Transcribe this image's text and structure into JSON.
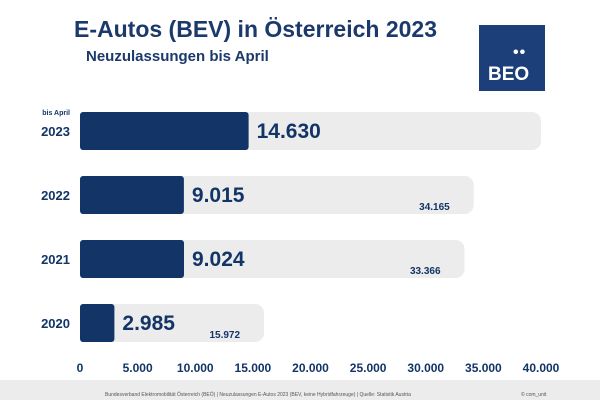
{
  "header": {
    "title": "E-Autos (BEV) in Österreich 2023",
    "subtitle": "Neuzulassungen bis April"
  },
  "logo": {
    "dots": "••",
    "text": "BEO"
  },
  "footer": {
    "source": "Bundesverband Elektromobilität Österreich (BEÖ) | Neuzulassungen E-Autos 2023 (BEV, keine Hybridfahrzeuge) | Quelle: Statistik Austria",
    "credit": "© com_unit"
  },
  "colors": {
    "accent": "#123466",
    "background_bar": "#ececec",
    "title": "#1b3a6b"
  },
  "chart_data": {
    "type": "bar",
    "orientation": "horizontal",
    "categories": [
      "2023",
      "2022",
      "2021",
      "2020"
    ],
    "category_notes": [
      "bis April",
      "",
      "",
      ""
    ],
    "series": [
      {
        "values": [
          14630,
          9015,
          9024,
          2985
        ]
      },
      {
        "values": [
          40000,
          34165,
          33366,
          15972
        ]
      }
    ],
    "value_labels": [
      "14.630",
      "9.015",
      "9.024",
      "2.985"
    ],
    "total_labels": [
      "",
      "34.165",
      "33.366",
      "15.972"
    ],
    "x_ticks": [
      0,
      5000,
      10000,
      15000,
      20000,
      25000,
      30000,
      35000,
      40000
    ],
    "x_tick_labels": [
      "0",
      "5.000",
      "10.000",
      "15.000",
      "20.000",
      "25.000",
      "30.000",
      "35.000",
      "40.000"
    ],
    "xlim": [
      0,
      40000
    ],
    "grid": false,
    "legend": "none"
  }
}
